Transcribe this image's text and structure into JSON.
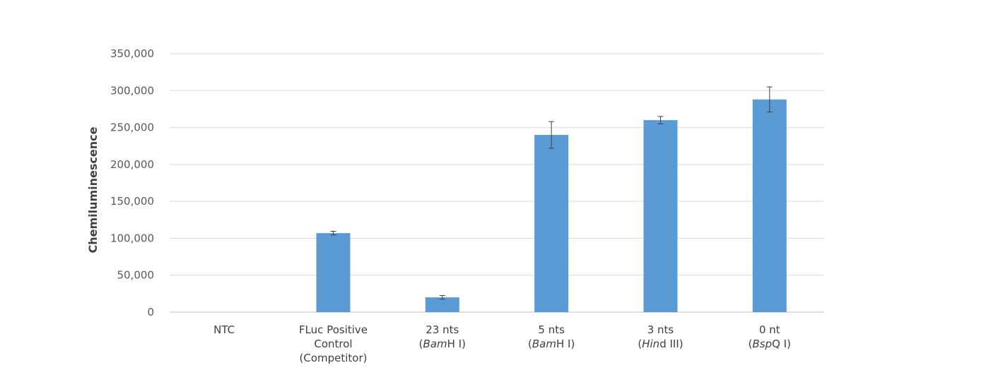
{
  "chart_data": {
    "type": "bar",
    "title": "",
    "xlabel": "",
    "ylabel": "Chemiluminescence",
    "ylim": [
      0,
      350000
    ],
    "yticks": [
      "0",
      "50,000",
      "100,000",
      "150,000",
      "200,000",
      "250,000",
      "300,000",
      "350,000"
    ],
    "ytick_values": [
      0,
      50000,
      100000,
      150000,
      200000,
      250000,
      300000,
      350000
    ],
    "grid": true,
    "legend": "none",
    "bar_color": "#5b9bd5",
    "categories": [
      {
        "lines": [
          "NTC"
        ],
        "italic_line": ""
      },
      {
        "lines": [
          "FLuc Positive",
          "Control",
          "(Competitor)"
        ]
      },
      {
        "lines": [
          "23 nts"
        ],
        "enzyme_italic": "Bam",
        "enzyme_rest": "H I"
      },
      {
        "lines": [
          "5 nts"
        ],
        "enzyme_italic": "Bam",
        "enzyme_rest": "H I"
      },
      {
        "lines": [
          "3 nts"
        ],
        "enzyme_italic": "Hin",
        "enzyme_rest": "d III"
      },
      {
        "lines": [
          "0 nt"
        ],
        "enzyme_italic": "Bsp",
        "enzyme_rest": "Q I"
      }
    ],
    "values": [
      0,
      107000,
      20000,
      240000,
      260000,
      288000
    ],
    "errors": [
      0,
      2500,
      2500,
      18000,
      5000,
      17000
    ]
  }
}
